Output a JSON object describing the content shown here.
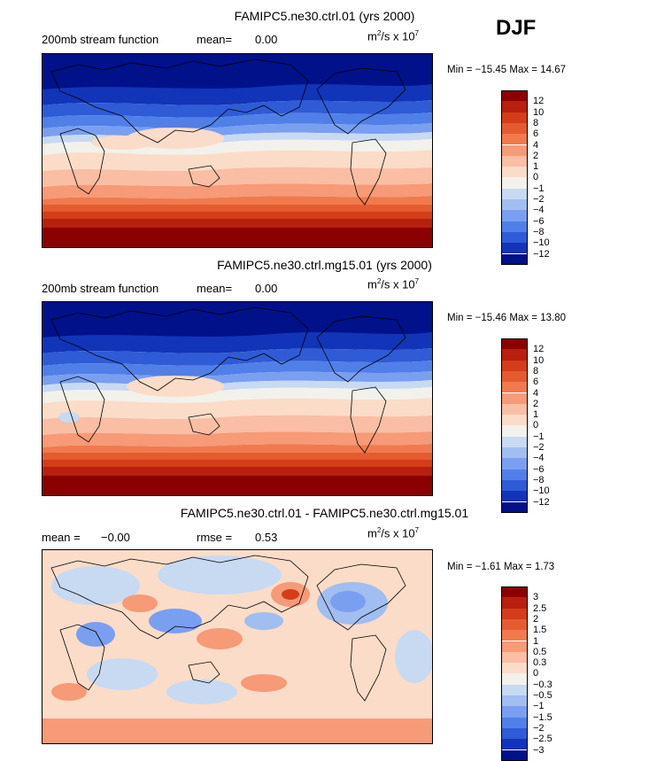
{
  "season": "DJF",
  "panels": [
    {
      "title": "FAMIPC5.ne30.ctrl.01 (yrs 2000)",
      "left_label": "200mb stream function",
      "mean_label": "mean=",
      "mean_value": "0.00",
      "units_base": "m",
      "units_sup1": "2",
      "units_mid": "/s x 10",
      "units_sup2": "7",
      "min_label": "Min =",
      "min_value": "−15.45",
      "max_label": "Max =",
      "max_value": "14.67",
      "colorbar": [
        {
          "label": "12",
          "color": "#8b0000"
        },
        {
          "label": "10",
          "color": "#b8200d"
        },
        {
          "label": "8",
          "color": "#d43d1a"
        },
        {
          "label": "6",
          "color": "#e55b30"
        },
        {
          "label": "4",
          "color": "#f07a4e"
        },
        {
          "label": "2",
          "color": "#f69a77"
        },
        {
          "label": "1",
          "color": "#f9bea4"
        },
        {
          "label": "0",
          "color": "#fbdcc8"
        },
        {
          "label": "−1",
          "color": "#f3f1ec"
        },
        {
          "label": "−2",
          "color": "#c8d9f2"
        },
        {
          "label": "−4",
          "color": "#a2bdf0"
        },
        {
          "label": "−6",
          "color": "#7a9ff0"
        },
        {
          "label": "−8",
          "color": "#507fe8"
        },
        {
          "label": "−10",
          "color": "#2f5bd6"
        },
        {
          "label": "−12",
          "color": "#1234b8"
        },
        {
          "label": "",
          "color": "#00118a"
        }
      ]
    },
    {
      "title": "FAMIPC5.ne30.ctrl.mg15.01 (yrs 2000)",
      "left_label": "200mb stream function",
      "mean_label": "mean=",
      "mean_value": "0.00",
      "units_base": "m",
      "units_sup1": "2",
      "units_mid": "/s x 10",
      "units_sup2": "7",
      "min_label": "Min =",
      "min_value": "−15.46",
      "max_label": "Max =",
      "max_value": "13.80",
      "colorbar": [
        {
          "label": "12",
          "color": "#8b0000"
        },
        {
          "label": "10",
          "color": "#b8200d"
        },
        {
          "label": "8",
          "color": "#d43d1a"
        },
        {
          "label": "6",
          "color": "#e55b30"
        },
        {
          "label": "4",
          "color": "#f07a4e"
        },
        {
          "label": "2",
          "color": "#f69a77"
        },
        {
          "label": "1",
          "color": "#f9bea4"
        },
        {
          "label": "0",
          "color": "#fbdcc8"
        },
        {
          "label": "−1",
          "color": "#f3f1ec"
        },
        {
          "label": "−2",
          "color": "#c8d9f2"
        },
        {
          "label": "−4",
          "color": "#a2bdf0"
        },
        {
          "label": "−6",
          "color": "#7a9ff0"
        },
        {
          "label": "−8",
          "color": "#507fe8"
        },
        {
          "label": "−10",
          "color": "#2f5bd6"
        },
        {
          "label": "−12",
          "color": "#1234b8"
        },
        {
          "label": "",
          "color": "#00118a"
        }
      ]
    },
    {
      "title": "FAMIPC5.ne30.ctrl.01 - FAMIPC5.ne30.ctrl.mg15.01",
      "left_label": "mean =",
      "mean_label": "",
      "mean_value": "−0.00",
      "rmse_label": "rmse =",
      "rmse_value": "0.53",
      "units_base": "m",
      "units_sup1": "2",
      "units_mid": "/s x 10",
      "units_sup2": "7",
      "min_label": "Min =",
      "min_value": "−1.61",
      "max_label": "Max =",
      "max_value": "1.73",
      "colorbar": [
        {
          "label": "3",
          "color": "#8b0000"
        },
        {
          "label": "2.5",
          "color": "#b8200d"
        },
        {
          "label": "2",
          "color": "#d43d1a"
        },
        {
          "label": "1.5",
          "color": "#e55b30"
        },
        {
          "label": "1",
          "color": "#f07a4e"
        },
        {
          "label": "0.5",
          "color": "#f69a77"
        },
        {
          "label": "0.3",
          "color": "#f9bea4"
        },
        {
          "label": "0",
          "color": "#fbdcc8"
        },
        {
          "label": "−0.3",
          "color": "#f3f1ec"
        },
        {
          "label": "−0.5",
          "color": "#c8d9f2"
        },
        {
          "label": "−1",
          "color": "#a2bdf0"
        },
        {
          "label": "−1.5",
          "color": "#7a9ff0"
        },
        {
          "label": "−2",
          "color": "#507fe8"
        },
        {
          "label": "−2.5",
          "color": "#2f5bd6"
        },
        {
          "label": "−3",
          "color": "#1234b8"
        },
        {
          "label": "",
          "color": "#00118a"
        }
      ]
    }
  ]
}
